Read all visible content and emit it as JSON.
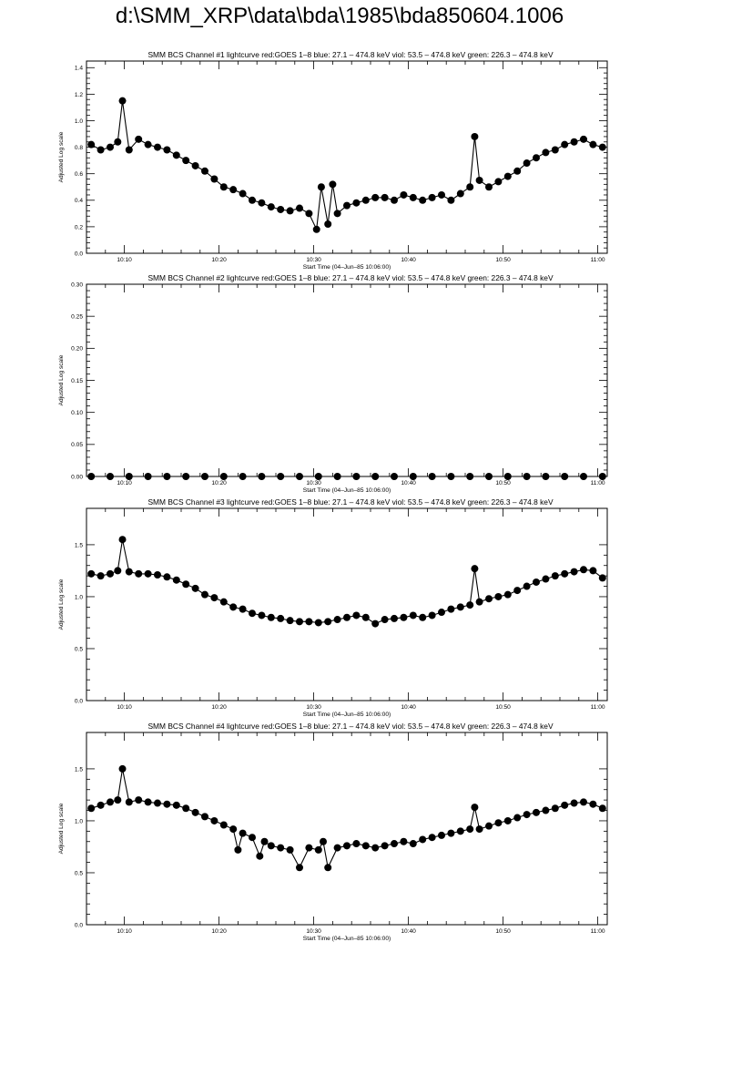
{
  "page": {
    "title": "d:\\SMM_XRP\\data\\bda\\1985\\bda850604.1006"
  },
  "colors": {
    "axis": "#000000",
    "data": "#000000",
    "background": "#ffffff"
  },
  "chart_data": [
    {
      "type": "scatter",
      "title": "SMM BCS Channel #1 lightcurve  red:GOES 1–8  blue: 27.1 – 474.8 keV  viol: 53.5 – 474.8 keV  green: 226.3 – 474.8 keV",
      "xlabel": "Start Time (04–Jun–85 10:06:00)",
      "ylabel": "Adjusted Log scale",
      "xlim": [
        6.0,
        61.0
      ],
      "ylim": [
        0.0,
        1.45
      ],
      "x_ticks": [
        {
          "v": 10,
          "label": "10:10"
        },
        {
          "v": 20,
          "label": "10:20"
        },
        {
          "v": 30,
          "label": "10:30"
        },
        {
          "v": 40,
          "label": "10:40"
        },
        {
          "v": 50,
          "label": "10:50"
        },
        {
          "v": 60,
          "label": "11:00"
        }
      ],
      "y_ticks": [
        {
          "v": 0.0,
          "label": "0.0"
        },
        {
          "v": 0.2,
          "label": "0.2"
        },
        {
          "v": 0.4,
          "label": "0.4"
        },
        {
          "v": 0.6,
          "label": "0.6"
        },
        {
          "v": 0.8,
          "label": "0.8"
        },
        {
          "v": 1.0,
          "label": "1.0"
        },
        {
          "v": 1.2,
          "label": "1.2"
        },
        {
          "v": 1.4,
          "label": "1.4"
        }
      ],
      "x": [
        6.5,
        7.5,
        8.5,
        9.3,
        9.8,
        10.5,
        11.5,
        12.5,
        13.5,
        14.5,
        15.5,
        16.5,
        17.5,
        18.5,
        19.5,
        20.5,
        21.5,
        22.5,
        23.5,
        24.5,
        25.5,
        26.5,
        27.5,
        28.5,
        29.5,
        30.3,
        30.8,
        31.5,
        32.0,
        32.5,
        33.5,
        34.5,
        35.5,
        36.5,
        37.5,
        38.5,
        39.5,
        40.5,
        41.5,
        42.5,
        43.5,
        44.5,
        45.5,
        46.5,
        47.0,
        47.5,
        48.5,
        49.5,
        50.5,
        51.5,
        52.5,
        53.5,
        54.5,
        55.5,
        56.5,
        57.5,
        58.5,
        59.5,
        60.5
      ],
      "values": [
        0.82,
        0.78,
        0.8,
        0.84,
        1.15,
        0.78,
        0.86,
        0.82,
        0.8,
        0.78,
        0.74,
        0.7,
        0.66,
        0.62,
        0.56,
        0.5,
        0.48,
        0.45,
        0.4,
        0.38,
        0.35,
        0.33,
        0.32,
        0.34,
        0.3,
        0.18,
        0.5,
        0.22,
        0.52,
        0.3,
        0.36,
        0.38,
        0.4,
        0.42,
        0.42,
        0.4,
        0.44,
        0.42,
        0.4,
        0.42,
        0.44,
        0.4,
        0.45,
        0.5,
        0.88,
        0.55,
        0.5,
        0.54,
        0.58,
        0.62,
        0.68,
        0.72,
        0.76,
        0.78,
        0.82,
        0.84,
        0.86,
        0.82,
        0.8
      ],
      "marker": "filled-circle",
      "grid": false
    },
    {
      "type": "scatter",
      "title": "SMM BCS Channel #2 lightcurve  red:GOES 1–8  blue: 27.1 – 474.8 keV  viol: 53.5 – 474.8 keV  green: 226.3 – 474.8 keV",
      "xlabel": "Start Time (04–Jun–85 10:06:00)",
      "ylabel": "Adjusted Log scale",
      "xlim": [
        6.0,
        61.0
      ],
      "ylim": [
        0.0,
        0.3
      ],
      "x_ticks": [
        {
          "v": 10,
          "label": "10:10"
        },
        {
          "v": 20,
          "label": "10:20"
        },
        {
          "v": 30,
          "label": "10:30"
        },
        {
          "v": 40,
          "label": "10:40"
        },
        {
          "v": 50,
          "label": "10:50"
        },
        {
          "v": 60,
          "label": "11:00"
        }
      ],
      "y_ticks": [
        {
          "v": 0.0,
          "label": "0.00"
        },
        {
          "v": 0.05,
          "label": "0.05"
        },
        {
          "v": 0.1,
          "label": "0.10"
        },
        {
          "v": 0.15,
          "label": "0.15"
        },
        {
          "v": 0.2,
          "label": "0.20"
        },
        {
          "v": 0.25,
          "label": "0.25"
        },
        {
          "v": 0.3,
          "label": "0.30"
        }
      ],
      "x": [
        6.5,
        8.5,
        10.5,
        12.5,
        14.5,
        16.5,
        18.5,
        20.5,
        22.5,
        24.5,
        26.5,
        28.5,
        30.5,
        32.5,
        34.5,
        36.5,
        38.5,
        40.5,
        42.5,
        44.5,
        46.5,
        48.5,
        50.5,
        52.5,
        54.5,
        56.5,
        58.5,
        60.5
      ],
      "values": [
        0,
        0,
        0,
        0,
        0,
        0,
        0,
        0,
        0,
        0,
        0,
        0,
        0,
        0,
        0,
        0,
        0,
        0,
        0,
        0,
        0,
        0,
        0,
        0,
        0,
        0,
        0,
        0
      ],
      "marker": "filled-circle",
      "grid": false
    },
    {
      "type": "scatter",
      "title": "SMM BCS Channel #3 lightcurve  red:GOES 1–8  blue: 27.1 – 474.8 keV  viol: 53.5 – 474.8 keV  green: 226.3 – 474.8 keV",
      "xlabel": "Start Time (04–Jun–85 10:06:00)",
      "ylabel": "Adjusted Log scale",
      "xlim": [
        6.0,
        61.0
      ],
      "ylim": [
        0.0,
        1.85
      ],
      "x_ticks": [
        {
          "v": 10,
          "label": "10:10"
        },
        {
          "v": 20,
          "label": "10:20"
        },
        {
          "v": 30,
          "label": "10:30"
        },
        {
          "v": 40,
          "label": "10:40"
        },
        {
          "v": 50,
          "label": "10:50"
        },
        {
          "v": 60,
          "label": "11:00"
        }
      ],
      "y_ticks": [
        {
          "v": 0.0,
          "label": "0.0"
        },
        {
          "v": 0.5,
          "label": "0.5"
        },
        {
          "v": 1.0,
          "label": "1.0"
        },
        {
          "v": 1.5,
          "label": "1.5"
        }
      ],
      "x": [
        6.5,
        7.5,
        8.5,
        9.3,
        9.8,
        10.5,
        11.5,
        12.5,
        13.5,
        14.5,
        15.5,
        16.5,
        17.5,
        18.5,
        19.5,
        20.5,
        21.5,
        22.5,
        23.5,
        24.5,
        25.5,
        26.5,
        27.5,
        28.5,
        29.5,
        30.5,
        31.5,
        32.5,
        33.5,
        34.5,
        35.5,
        36.5,
        37.5,
        38.5,
        39.5,
        40.5,
        41.5,
        42.5,
        43.5,
        44.5,
        45.5,
        46.5,
        47.0,
        47.5,
        48.5,
        49.5,
        50.5,
        51.5,
        52.5,
        53.5,
        54.5,
        55.5,
        56.5,
        57.5,
        58.5,
        59.5,
        60.5
      ],
      "values": [
        1.22,
        1.2,
        1.22,
        1.25,
        1.55,
        1.24,
        1.22,
        1.22,
        1.21,
        1.19,
        1.16,
        1.12,
        1.08,
        1.02,
        0.99,
        0.95,
        0.9,
        0.88,
        0.84,
        0.82,
        0.8,
        0.79,
        0.77,
        0.76,
        0.76,
        0.75,
        0.76,
        0.78,
        0.8,
        0.82,
        0.8,
        0.74,
        0.78,
        0.79,
        0.8,
        0.82,
        0.8,
        0.82,
        0.85,
        0.88,
        0.9,
        0.92,
        1.27,
        0.95,
        0.98,
        1.0,
        1.02,
        1.06,
        1.1,
        1.14,
        1.17,
        1.2,
        1.22,
        1.24,
        1.26,
        1.25,
        1.18
      ],
      "marker": "filled-circle",
      "grid": false
    },
    {
      "type": "scatter",
      "title": "SMM BCS Channel #4 lightcurve  red:GOES 1–8  blue: 27.1 – 474.8 keV  viol: 53.5 – 474.8 keV  green: 226.3 – 474.8 keV",
      "xlabel": "Start Time (04–Jun–85 10:06:00)",
      "ylabel": "Adjusted Log scale",
      "xlim": [
        6.0,
        61.0
      ],
      "ylim": [
        0.0,
        1.85
      ],
      "x_ticks": [
        {
          "v": 10,
          "label": "10:10"
        },
        {
          "v": 20,
          "label": "10:20"
        },
        {
          "v": 30,
          "label": "10:30"
        },
        {
          "v": 40,
          "label": "10:40"
        },
        {
          "v": 50,
          "label": "10:50"
        },
        {
          "v": 60,
          "label": "11:00"
        }
      ],
      "y_ticks": [
        {
          "v": 0.0,
          "label": "0.0"
        },
        {
          "v": 0.5,
          "label": "0.5"
        },
        {
          "v": 1.0,
          "label": "1.0"
        },
        {
          "v": 1.5,
          "label": "1.5"
        }
      ],
      "x": [
        6.5,
        7.5,
        8.5,
        9.3,
        9.8,
        10.5,
        11.5,
        12.5,
        13.5,
        14.5,
        15.5,
        16.5,
        17.5,
        18.5,
        19.5,
        20.5,
        21.5,
        22.0,
        22.5,
        23.5,
        24.3,
        24.8,
        25.5,
        26.5,
        27.5,
        28.5,
        29.5,
        30.5,
        31.0,
        31.5,
        32.5,
        33.5,
        34.5,
        35.5,
        36.5,
        37.5,
        38.5,
        39.5,
        40.5,
        41.5,
        42.5,
        43.5,
        44.5,
        45.5,
        46.5,
        47.0,
        47.5,
        48.5,
        49.5,
        50.5,
        51.5,
        52.5,
        53.5,
        54.5,
        55.5,
        56.5,
        57.5,
        58.5,
        59.5,
        60.5
      ],
      "values": [
        1.12,
        1.15,
        1.18,
        1.2,
        1.5,
        1.18,
        1.2,
        1.18,
        1.17,
        1.16,
        1.15,
        1.12,
        1.08,
        1.04,
        1.0,
        0.96,
        0.92,
        0.72,
        0.88,
        0.84,
        0.66,
        0.8,
        0.76,
        0.74,
        0.72,
        0.55,
        0.74,
        0.72,
        0.8,
        0.55,
        0.74,
        0.76,
        0.78,
        0.76,
        0.74,
        0.76,
        0.78,
        0.8,
        0.78,
        0.82,
        0.84,
        0.86,
        0.88,
        0.9,
        0.92,
        1.13,
        0.92,
        0.95,
        0.98,
        1.0,
        1.03,
        1.06,
        1.08,
        1.1,
        1.12,
        1.15,
        1.17,
        1.18,
        1.16,
        1.12
      ],
      "marker": "filled-circle",
      "grid": false
    }
  ]
}
